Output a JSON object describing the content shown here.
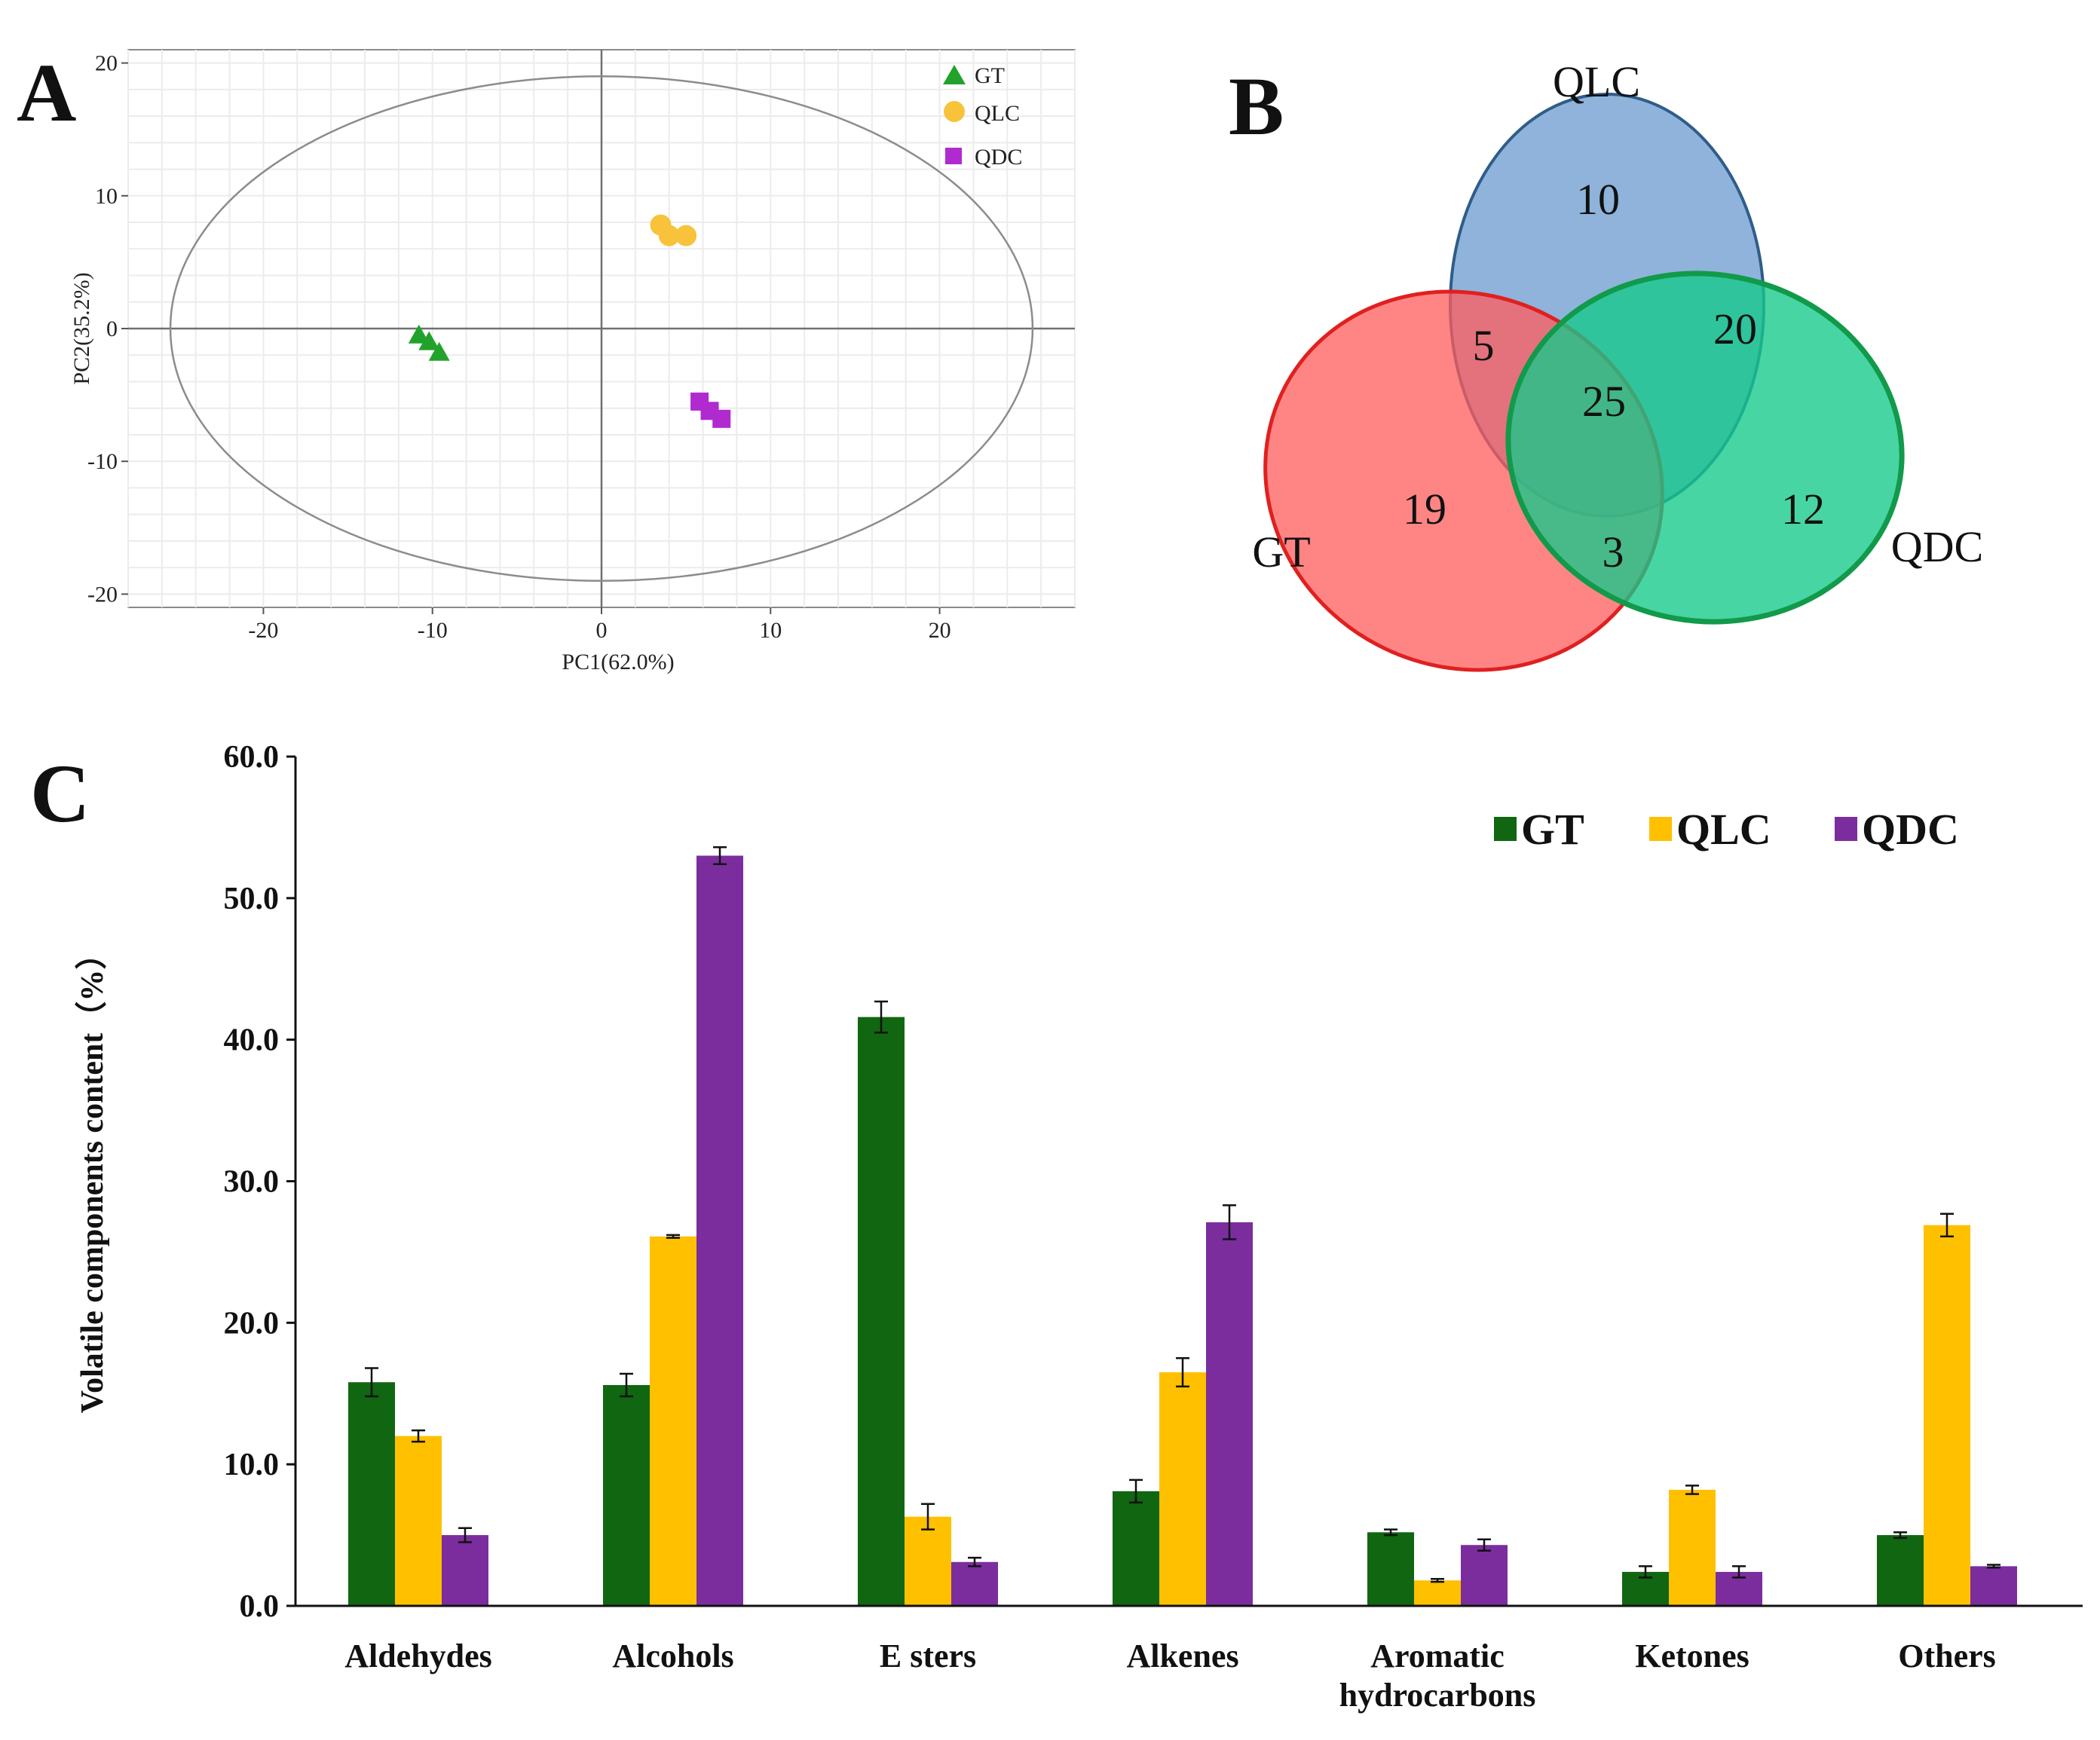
{
  "panels": {
    "a": "A",
    "b": "B",
    "c": "C"
  },
  "colors": {
    "GT": "#116611",
    "QLC": "#ffc000",
    "QDC": "#7b2d9e",
    "pcaGT": "#22a22a",
    "pcaQLC": "#f8c33a",
    "pcaQDC": "#b02ad0"
  },
  "chart_data": [
    {
      "type": "scatter",
      "xlabel": "PC1(62.0%)",
      "ylabel": "PC2(35.2%)",
      "xlim": [
        -28,
        28
      ],
      "ylim": [
        -21,
        21
      ],
      "xticks": [
        -20,
        -10,
        0,
        10,
        20
      ],
      "yticks": [
        20,
        10,
        0,
        -10,
        -20
      ],
      "grid": true,
      "legend_position": "top-right",
      "ellipse": {
        "center": [
          0,
          0
        ],
        "rx": 25.5,
        "ry": 19
      },
      "series": [
        {
          "name": "GT",
          "marker": "triangle",
          "points": [
            [
              -10.8,
              -0.5
            ],
            [
              -10.2,
              -1.0
            ],
            [
              -9.6,
              -1.8
            ]
          ]
        },
        {
          "name": "QLC",
          "marker": "circle",
          "points": [
            [
              3.5,
              7.8
            ],
            [
              4.0,
              7.0
            ],
            [
              5.0,
              7.0
            ]
          ]
        },
        {
          "name": "QDC",
          "marker": "square",
          "points": [
            [
              5.8,
              -5.5
            ],
            [
              6.4,
              -6.2
            ],
            [
              7.1,
              -6.8
            ]
          ]
        }
      ]
    },
    {
      "type": "venn",
      "sets": [
        "QLC",
        "GT",
        "QDC"
      ],
      "regions": {
        "QLC_only": "10",
        "GT_only": "19",
        "QDC_only": "12",
        "GT_QLC": "5",
        "QLC_QDC": "20",
        "GT_QDC": "3",
        "all": "25"
      }
    },
    {
      "type": "bar",
      "ylabel": "Volatile components content（%）",
      "ylim": [
        0,
        60
      ],
      "yticks": [
        "0.0",
        "10.0",
        "20.0",
        "30.0",
        "40.0",
        "50.0",
        "60.0"
      ],
      "legend_position": "top-right",
      "categories": [
        [
          "Aldehydes"
        ],
        [
          "Alcohols"
        ],
        [
          "E sters"
        ],
        [
          "Alkenes"
        ],
        [
          "Aromatic",
          "hydrocarbons"
        ],
        [
          "Ketones"
        ],
        [
          "Others"
        ]
      ],
      "series": [
        {
          "name": "GT",
          "values": [
            15.8,
            15.6,
            41.6,
            8.1,
            5.2,
            2.4,
            5.0
          ],
          "errors": [
            1.0,
            0.8,
            1.1,
            0.8,
            0.2,
            0.4,
            0.2
          ]
        },
        {
          "name": "QLC",
          "values": [
            12.0,
            26.1,
            6.3,
            16.5,
            1.8,
            8.2,
            26.9
          ],
          "errors": [
            0.4,
            0.1,
            0.9,
            1.0,
            0.1,
            0.3,
            0.8
          ]
        },
        {
          "name": "QDC",
          "values": [
            5.0,
            53.0,
            3.1,
            27.1,
            4.3,
            2.4,
            2.8
          ],
          "errors": [
            0.5,
            0.6,
            0.3,
            1.2,
            0.4,
            0.4,
            0.1
          ]
        }
      ]
    }
  ]
}
